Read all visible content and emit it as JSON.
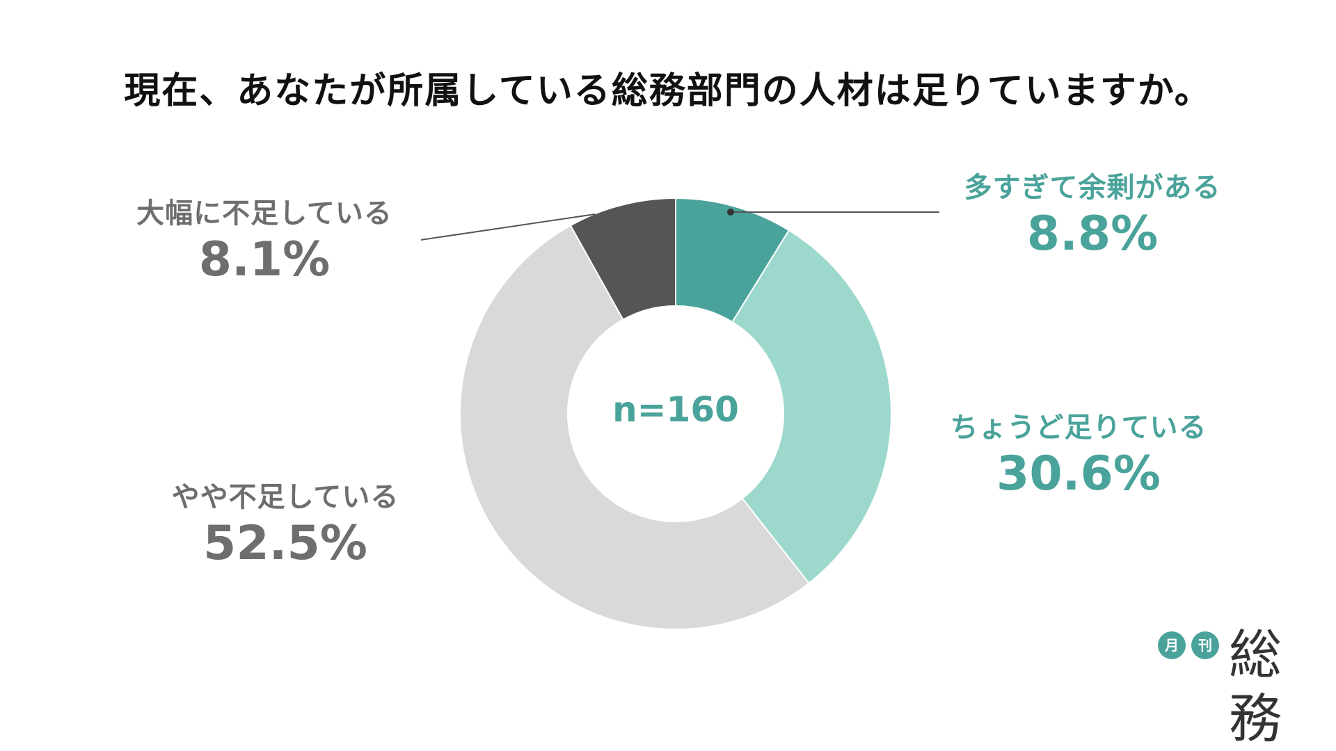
{
  "title": "現在、あなたが所属している総務部門の人材は足りていますか。",
  "center_label": "n=160",
  "colors": {
    "teal_dark": "#4aa39a",
    "teal_light": "#9dd8cd",
    "gray_light": "#d9d9d9",
    "gray_dark": "#555555",
    "label_teal": "#4aa39a",
    "label_gray": "#6e6e6e"
  },
  "chart_data": {
    "type": "pie",
    "donut": true,
    "title": "現在、あなたが所属している総務部門の人材は足りていますか。",
    "center_text": "n=160",
    "slices": [
      {
        "label": "多すぎて余剰がある",
        "value": 8.8,
        "display": "8.8%",
        "color": "#4aa39a"
      },
      {
        "label": "ちょうど足りている",
        "value": 30.6,
        "display": "30.6%",
        "color": "#9dd8cd"
      },
      {
        "label": "やや不足している",
        "value": 52.5,
        "display": "52.5%",
        "color": "#d9d9d9"
      },
      {
        "label": "大幅に不足している",
        "value": 8.1,
        "display": "8.1%",
        "color": "#555555"
      }
    ]
  },
  "logo": {
    "small_1": "月",
    "small_2": "刊",
    "main": "総務"
  }
}
